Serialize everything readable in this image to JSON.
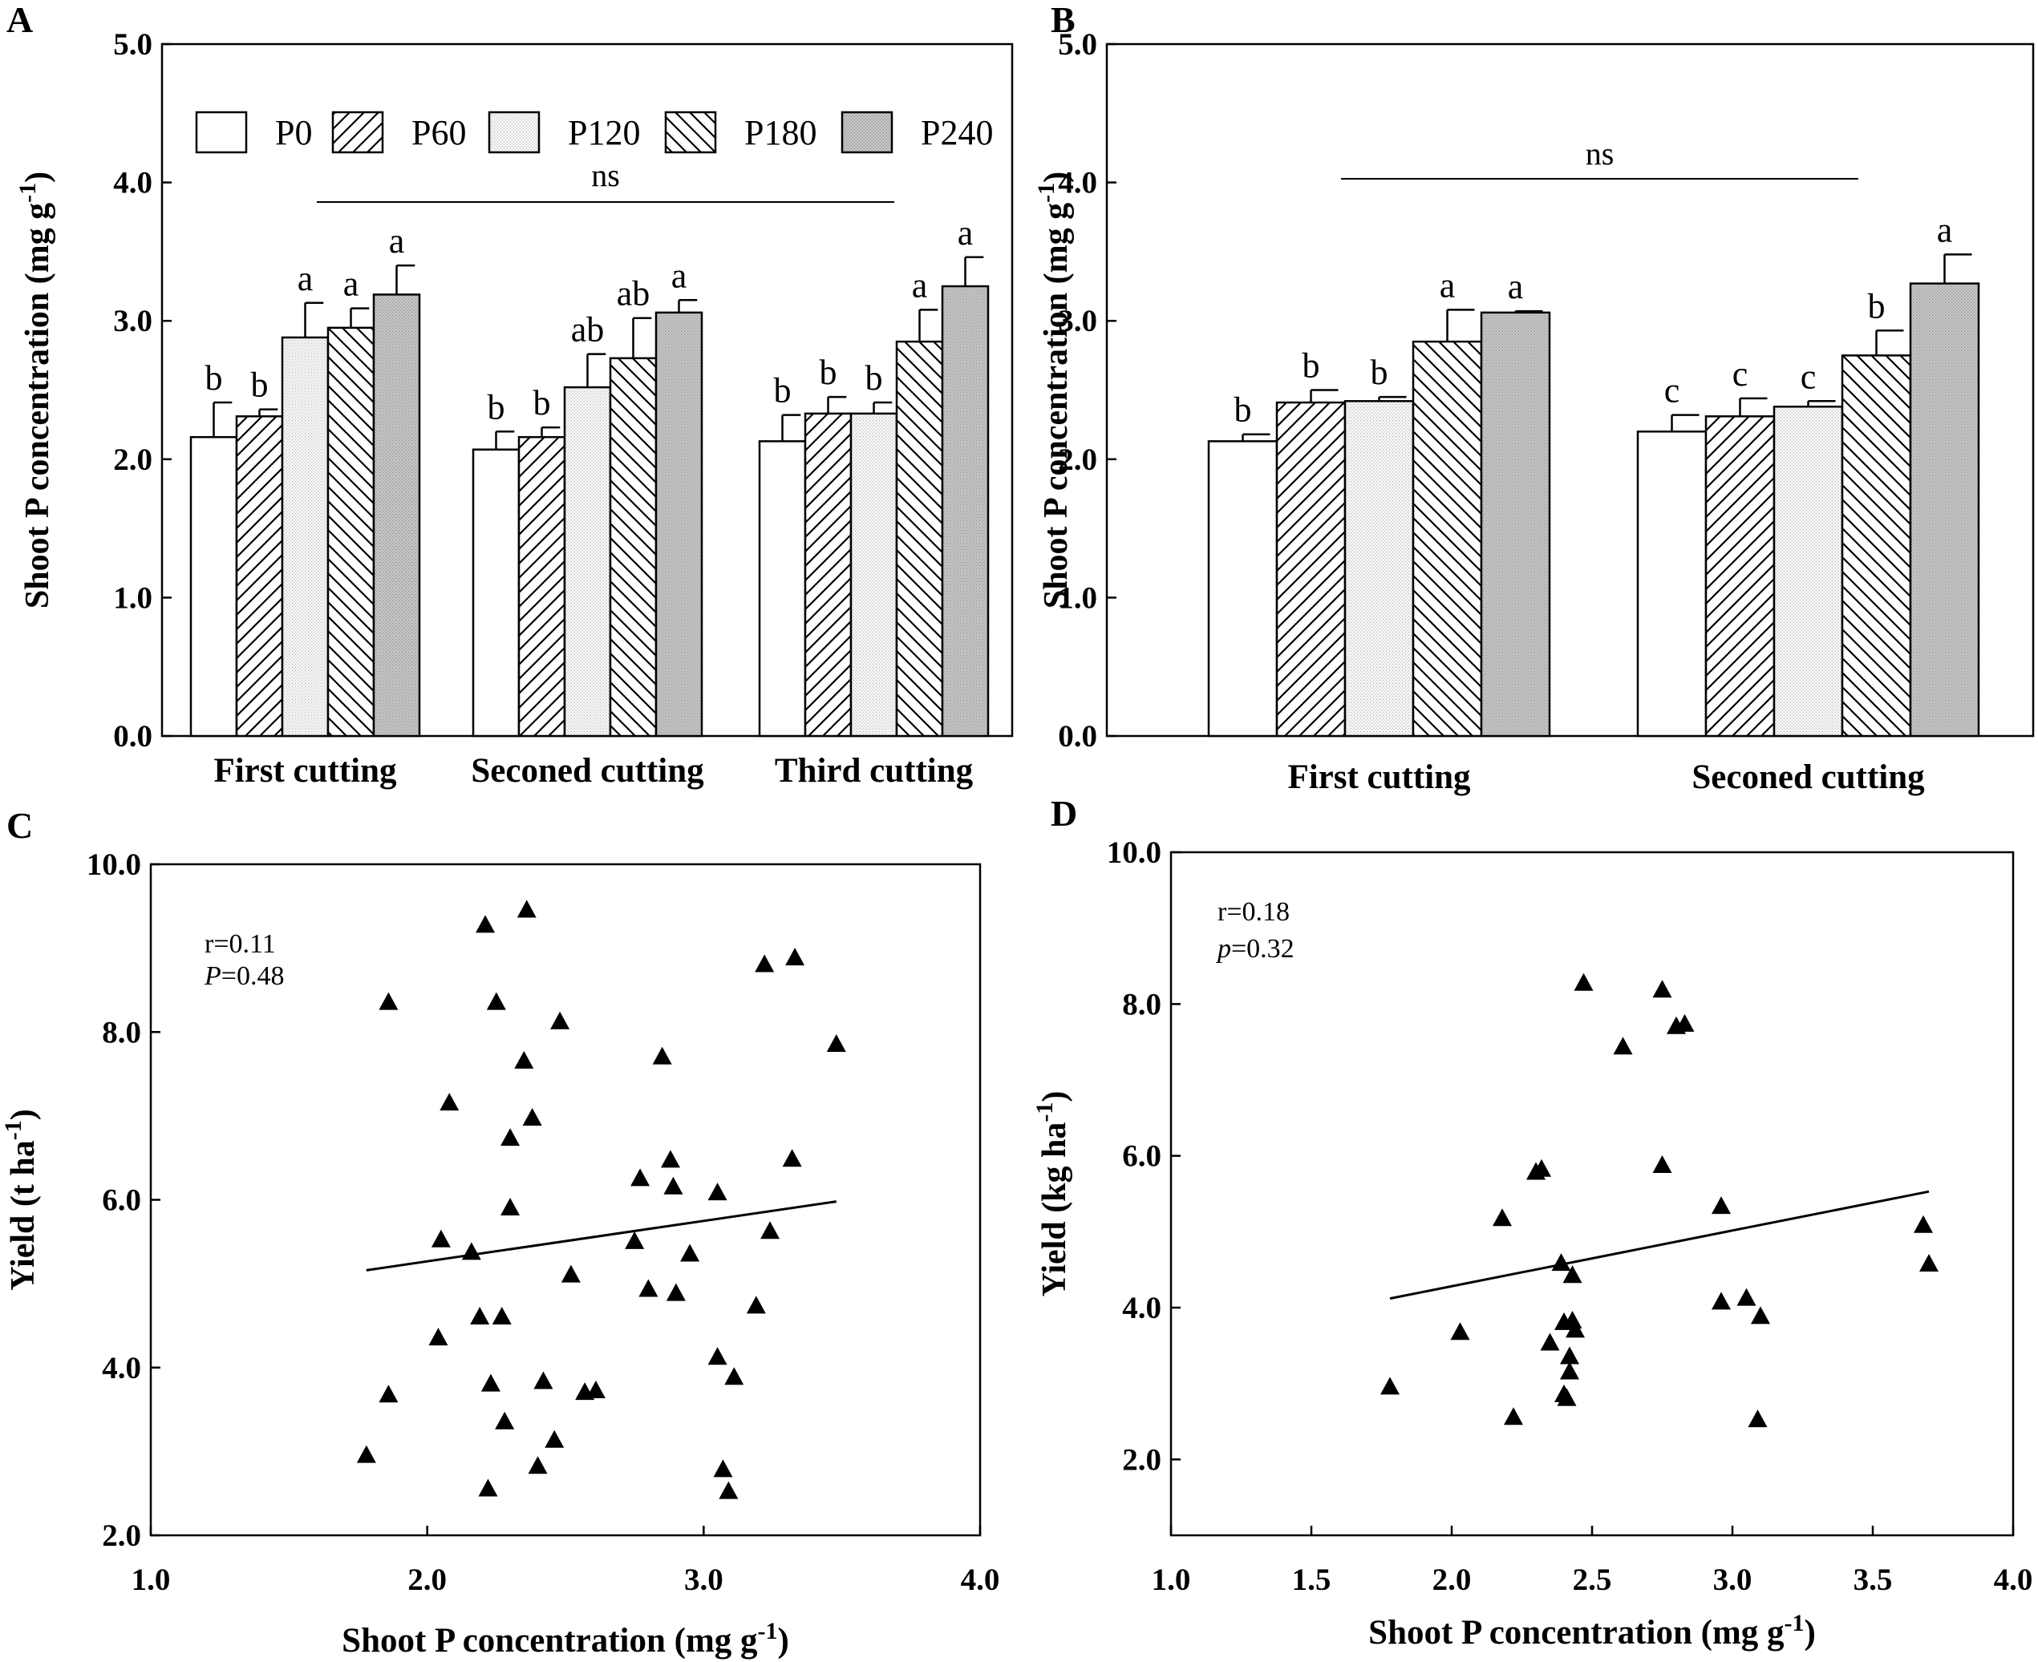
{
  "chart_data": [
    {
      "panel": "A",
      "type": "bar",
      "ylabel": "Shoot P concentration (mg g",
      "ylabel_sup": "-1",
      "ylabel_end": ")",
      "ylim": [
        0,
        5
      ],
      "yticks": [
        "0.0",
        "1.0",
        "2.0",
        "3.0",
        "4.0",
        "5.0"
      ],
      "categories": [
        "First cutting",
        "Seconed cutting",
        "Third cutting"
      ],
      "ns_label": "ns",
      "legend": [
        "P0",
        "P60",
        "P120",
        "P180",
        "P240"
      ],
      "series": [
        {
          "name": "P0",
          "pattern": "white",
          "values": [
            2.16,
            2.07,
            2.13
          ],
          "errors": [
            0.25,
            0.13,
            0.19
          ],
          "letters": [
            "b",
            "b",
            "b"
          ]
        },
        {
          "name": "P60",
          "pattern": "hatch",
          "values": [
            2.31,
            2.16,
            2.33
          ],
          "errors": [
            0.05,
            0.07,
            0.12
          ],
          "letters": [
            "b",
            "b",
            "b"
          ]
        },
        {
          "name": "P120",
          "pattern": "dotted",
          "values": [
            2.88,
            2.52,
            2.33
          ],
          "errors": [
            0.25,
            0.24,
            0.08
          ],
          "letters": [
            "a",
            "ab",
            "b"
          ]
        },
        {
          "name": "P180",
          "pattern": "back",
          "values": [
            2.95,
            2.73,
            2.85
          ],
          "errors": [
            0.14,
            0.29,
            0.23
          ],
          "letters": [
            "a",
            "ab",
            "a"
          ]
        },
        {
          "name": "P240",
          "pattern": "grey",
          "values": [
            3.19,
            3.06,
            3.25
          ],
          "errors": [
            0.21,
            0.09,
            0.21
          ],
          "letters": [
            "a",
            "a",
            "a"
          ]
        }
      ]
    },
    {
      "panel": "B",
      "type": "bar",
      "ylabel": "Shoot P concentration (mg g",
      "ylabel_sup": "-1",
      "ylabel_end": ")",
      "ylim": [
        0,
        5
      ],
      "yticks": [
        "0.0",
        "1.0",
        "2.0",
        "3.0",
        "4.0",
        "5.0"
      ],
      "categories": [
        "First cutting",
        "Seconed cutting"
      ],
      "ns_label": "ns",
      "series": [
        {
          "name": "P0",
          "pattern": "white",
          "values": [
            2.13,
            2.2
          ],
          "errors": [
            0.05,
            0.12
          ],
          "letters": [
            "b",
            "c"
          ]
        },
        {
          "name": "P60",
          "pattern": "hatch",
          "values": [
            2.41,
            2.31
          ],
          "errors": [
            0.09,
            0.13
          ],
          "letters": [
            "b",
            "c"
          ]
        },
        {
          "name": "P120",
          "pattern": "dotted",
          "values": [
            2.42,
            2.38
          ],
          "errors": [
            0.03,
            0.04
          ],
          "letters": [
            "b",
            "c"
          ]
        },
        {
          "name": "P180",
          "pattern": "back",
          "values": [
            2.85,
            2.75
          ],
          "errors": [
            0.23,
            0.18
          ],
          "letters": [
            "a",
            "b"
          ]
        },
        {
          "name": "P240",
          "pattern": "grey",
          "values": [
            3.06,
            3.27
          ],
          "errors": [
            0.01,
            0.21
          ],
          "letters": [
            "a",
            "a"
          ]
        }
      ]
    },
    {
      "panel": "C",
      "type": "scatter",
      "xlabel": "Shoot P concentration (mg g",
      "xlabel_sup": "-1",
      "xlabel_end": ")",
      "ylabel": "Yield (t ha",
      "ylabel_sup": "-1",
      "ylabel_end": ")",
      "xlim": [
        1.0,
        4.0
      ],
      "ylim": [
        2.0,
        10.0
      ],
      "xticks": [
        "1.0",
        "2.0",
        "3.0",
        "4.0"
      ],
      "xtick_values": [
        1.0,
        2.0,
        3.0,
        4.0
      ],
      "yticks": [
        "2.0",
        "4.0",
        "6.0",
        "8.0",
        "10.0"
      ],
      "ytick_values": [
        2.0,
        4.0,
        6.0,
        8.0,
        10.0
      ],
      "stat_r": "r=0.11",
      "stat_p_label": "P",
      "stat_p_value": "=0.48",
      "fit_line": [
        [
          1.78,
          5.16
        ],
        [
          3.48,
          5.98
        ]
      ],
      "points": [
        [
          1.78,
          2.95
        ],
        [
          1.86,
          8.35
        ],
        [
          1.86,
          3.67
        ],
        [
          2.04,
          4.35
        ],
        [
          2.05,
          5.52
        ],
        [
          2.08,
          7.15
        ],
        [
          2.16,
          5.37
        ],
        [
          2.19,
          4.6
        ],
        [
          2.21,
          9.27
        ],
        [
          2.22,
          2.55
        ],
        [
          2.23,
          3.8
        ],
        [
          2.25,
          8.35
        ],
        [
          2.27,
          4.6
        ],
        [
          2.28,
          3.35
        ],
        [
          2.3,
          6.73
        ],
        [
          2.3,
          5.9
        ],
        [
          2.35,
          7.65
        ],
        [
          2.36,
          9.45
        ],
        [
          2.38,
          6.97
        ],
        [
          2.4,
          2.82
        ],
        [
          2.42,
          3.83
        ],
        [
          2.46,
          3.13
        ],
        [
          2.48,
          8.12
        ],
        [
          2.52,
          5.1
        ],
        [
          2.57,
          3.7
        ],
        [
          2.61,
          3.72
        ],
        [
          2.75,
          5.5
        ],
        [
          2.77,
          6.25
        ],
        [
          2.8,
          4.93
        ],
        [
          2.85,
          7.7
        ],
        [
          2.88,
          6.47
        ],
        [
          2.89,
          6.15
        ],
        [
          2.9,
          4.88
        ],
        [
          2.95,
          5.35
        ],
        [
          3.05,
          6.08
        ],
        [
          3.05,
          4.12
        ],
        [
          3.07,
          2.78
        ],
        [
          3.09,
          2.52
        ],
        [
          3.11,
          3.88
        ],
        [
          3.19,
          4.73
        ],
        [
          3.22,
          8.8
        ],
        [
          3.24,
          5.62
        ],
        [
          3.32,
          6.48
        ],
        [
          3.33,
          8.88
        ],
        [
          3.48,
          7.85
        ]
      ]
    },
    {
      "panel": "D",
      "type": "scatter",
      "xlabel": "Shoot P concentration (mg g",
      "xlabel_sup": "-1",
      "xlabel_end": ")",
      "ylabel": "Yield (kg ha",
      "ylabel_sup": "-1",
      "ylabel_end": ")",
      "xlim": [
        1.0,
        4.0
      ],
      "ylim": [
        1.0,
        10.0
      ],
      "xticks": [
        "1.0",
        "1.5",
        "2.0",
        "2.5",
        "3.0",
        "3.5",
        "4.0"
      ],
      "xtick_values": [
        1.0,
        1.5,
        2.0,
        2.5,
        3.0,
        3.5,
        4.0
      ],
      "yticks": [
        "2.0",
        "4.0",
        "6.0",
        "8.0",
        "10.0"
      ],
      "ytick_values": [
        2.0,
        4.0,
        6.0,
        8.0,
        10.0
      ],
      "stat_r": "r=0.18",
      "stat_p_label": "p",
      "stat_p_value": "=0.32",
      "fit_line": [
        [
          1.78,
          4.12
        ],
        [
          3.7,
          5.53
        ]
      ],
      "points": [
        [
          1.78,
          2.95
        ],
        [
          2.03,
          3.67
        ],
        [
          2.18,
          5.17
        ],
        [
          2.22,
          2.55
        ],
        [
          2.3,
          5.78
        ],
        [
          2.32,
          5.82
        ],
        [
          2.35,
          3.53
        ],
        [
          2.39,
          4.58
        ],
        [
          2.4,
          3.8
        ],
        [
          2.4,
          2.85
        ],
        [
          2.41,
          2.8
        ],
        [
          2.42,
          3.35
        ],
        [
          2.42,
          3.15
        ],
        [
          2.43,
          3.82
        ],
        [
          2.43,
          4.42
        ],
        [
          2.44,
          3.7
        ],
        [
          2.47,
          8.27
        ],
        [
          2.61,
          7.43
        ],
        [
          2.75,
          5.87
        ],
        [
          2.75,
          8.18
        ],
        [
          2.8,
          7.7
        ],
        [
          2.83,
          7.73
        ],
        [
          2.96,
          5.33
        ],
        [
          2.96,
          4.07
        ],
        [
          3.05,
          4.12
        ],
        [
          3.09,
          2.52
        ],
        [
          3.1,
          3.88
        ],
        [
          3.68,
          5.08
        ],
        [
          3.7,
          4.57
        ]
      ]
    }
  ]
}
